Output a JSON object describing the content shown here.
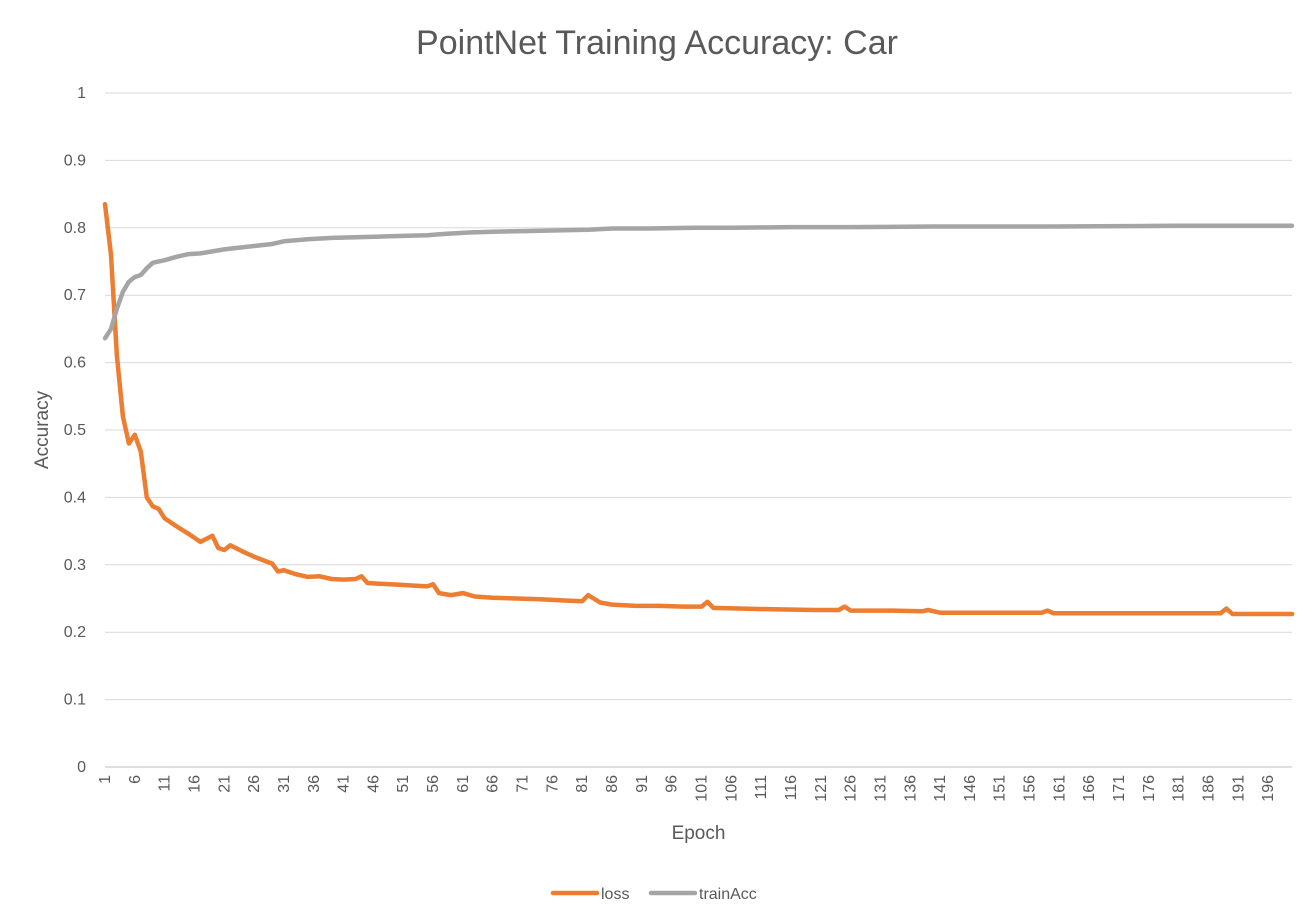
{
  "chart_data": {
    "type": "line",
    "title": "PointNet Training Accuracy: Car",
    "xlabel": "Epoch",
    "ylabel": "Accuracy",
    "ylim": [
      0,
      1
    ],
    "y_ticks": [
      "0",
      "0.1",
      "0.2",
      "0.3",
      "0.4",
      "0.5",
      "0.6",
      "0.7",
      "0.8",
      "0.9",
      "1"
    ],
    "x_tick_labels": [
      "1",
      "6",
      "11",
      "16",
      "21",
      "26",
      "31",
      "36",
      "41",
      "46",
      "51",
      "56",
      "61",
      "66",
      "71",
      "76",
      "81",
      "86",
      "91",
      "96",
      "101",
      "106",
      "111",
      "116",
      "121",
      "126",
      "131",
      "136",
      "141",
      "146",
      "151",
      "156",
      "161",
      "166",
      "171",
      "176",
      "181",
      "186",
      "191",
      "196"
    ],
    "x_range": [
      1,
      200
    ],
    "grid": true,
    "legend_position": "bottom",
    "series": [
      {
        "name": "loss",
        "color": "#ED7D31",
        "keypoints": [
          [
            1,
            0.835
          ],
          [
            2,
            0.76
          ],
          [
            3,
            0.61
          ],
          [
            4,
            0.52
          ],
          [
            5,
            0.48
          ],
          [
            6,
            0.493
          ],
          [
            7,
            0.468
          ],
          [
            8,
            0.4
          ],
          [
            9,
            0.387
          ],
          [
            10,
            0.383
          ],
          [
            11,
            0.369
          ],
          [
            13,
            0.357
          ],
          [
            15,
            0.346
          ],
          [
            17,
            0.334
          ],
          [
            19,
            0.343
          ],
          [
            20,
            0.325
          ],
          [
            21,
            0.322
          ],
          [
            22,
            0.329
          ],
          [
            24,
            0.32
          ],
          [
            26,
            0.312
          ],
          [
            28,
            0.305
          ],
          [
            29,
            0.302
          ],
          [
            30,
            0.29
          ],
          [
            31,
            0.292
          ],
          [
            33,
            0.286
          ],
          [
            35,
            0.282
          ],
          [
            37,
            0.283
          ],
          [
            39,
            0.279
          ],
          [
            41,
            0.278
          ],
          [
            43,
            0.279
          ],
          [
            44,
            0.283
          ],
          [
            45,
            0.273
          ],
          [
            47,
            0.272
          ],
          [
            51,
            0.27
          ],
          [
            55,
            0.268
          ],
          [
            56,
            0.271
          ],
          [
            57,
            0.258
          ],
          [
            59,
            0.255
          ],
          [
            61,
            0.258
          ],
          [
            63,
            0.253
          ],
          [
            66,
            0.251
          ],
          [
            70,
            0.25
          ],
          [
            74,
            0.249
          ],
          [
            78,
            0.247
          ],
          [
            81,
            0.246
          ],
          [
            82,
            0.255
          ],
          [
            84,
            0.244
          ],
          [
            86,
            0.241
          ],
          [
            90,
            0.239
          ],
          [
            94,
            0.239
          ],
          [
            98,
            0.238
          ],
          [
            101,
            0.238
          ],
          [
            102,
            0.245
          ],
          [
            103,
            0.236
          ],
          [
            108,
            0.235
          ],
          [
            113,
            0.234
          ],
          [
            120,
            0.233
          ],
          [
            124,
            0.233
          ],
          [
            125,
            0.238
          ],
          [
            126,
            0.232
          ],
          [
            133,
            0.232
          ],
          [
            138,
            0.231
          ],
          [
            139,
            0.233
          ],
          [
            141,
            0.229
          ],
          [
            150,
            0.229
          ],
          [
            158,
            0.229
          ],
          [
            159,
            0.232
          ],
          [
            160,
            0.228
          ],
          [
            170,
            0.228
          ],
          [
            178,
            0.228
          ],
          [
            186,
            0.228
          ],
          [
            188,
            0.228
          ],
          [
            189,
            0.235
          ],
          [
            190,
            0.227
          ],
          [
            200,
            0.227
          ]
        ],
        "start": 0.835,
        "end": 0.227
      },
      {
        "name": "trainAcc",
        "color": "#A5A5A5",
        "keypoints": [
          [
            1,
            0.636
          ],
          [
            2,
            0.65
          ],
          [
            3,
            0.68
          ],
          [
            4,
            0.705
          ],
          [
            5,
            0.72
          ],
          [
            6,
            0.727
          ],
          [
            7,
            0.73
          ],
          [
            8,
            0.74
          ],
          [
            9,
            0.748
          ],
          [
            11,
            0.752
          ],
          [
            13,
            0.757
          ],
          [
            15,
            0.761
          ],
          [
            17,
            0.762
          ],
          [
            19,
            0.765
          ],
          [
            21,
            0.768
          ],
          [
            23,
            0.77
          ],
          [
            26,
            0.773
          ],
          [
            29,
            0.776
          ],
          [
            31,
            0.78
          ],
          [
            35,
            0.783
          ],
          [
            39,
            0.785
          ],
          [
            43,
            0.786
          ],
          [
            47,
            0.787
          ],
          [
            51,
            0.788
          ],
          [
            55,
            0.789
          ],
          [
            58,
            0.791
          ],
          [
            62,
            0.793
          ],
          [
            66,
            0.794
          ],
          [
            70,
            0.795
          ],
          [
            76,
            0.796
          ],
          [
            82,
            0.797
          ],
          [
            86,
            0.799
          ],
          [
            92,
            0.799
          ],
          [
            100,
            0.8
          ],
          [
            106,
            0.8
          ],
          [
            116,
            0.801
          ],
          [
            126,
            0.801
          ],
          [
            140,
            0.802
          ],
          [
            160,
            0.802
          ],
          [
            180,
            0.803
          ],
          [
            200,
            0.803
          ]
        ],
        "start": 0.636,
        "end": 0.803
      }
    ]
  }
}
